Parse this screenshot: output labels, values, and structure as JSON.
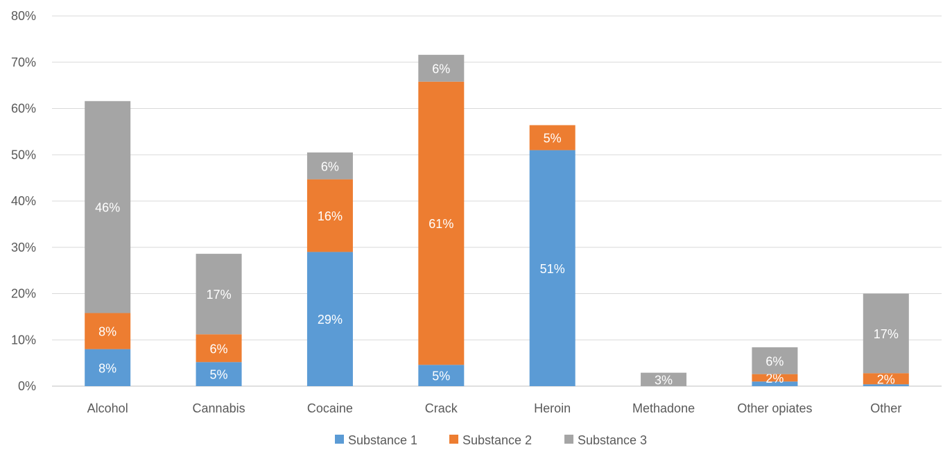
{
  "chart_data": {
    "type": "bar",
    "stacked": true,
    "categories": [
      "Alcohol",
      "Cannabis",
      "Cocaine",
      "Crack",
      "Heroin",
      "Methadone",
      "Other opiates",
      "Other"
    ],
    "series": [
      {
        "name": "Substance 1",
        "color": "#5B9BD5",
        "values": [
          0.08,
          0.052,
          0.29,
          0.046,
          0.51,
          0.0,
          0.01,
          0.004
        ],
        "labels": [
          "8%",
          "5%",
          "29%",
          "5%",
          "51%",
          "",
          "",
          ""
        ]
      },
      {
        "name": "Substance 2",
        "color": "#ED7D31",
        "values": [
          0.078,
          0.06,
          0.157,
          0.612,
          0.054,
          0.0,
          0.016,
          0.024
        ],
        "labels": [
          "8%",
          "6%",
          "16%",
          "61%",
          "5%",
          "",
          "2%",
          "2%"
        ]
      },
      {
        "name": "Substance 3",
        "color": "#A5A5A5",
        "values": [
          0.458,
          0.174,
          0.058,
          0.058,
          0.0,
          0.029,
          0.058,
          0.172
        ],
        "labels": [
          "46%",
          "17%",
          "6%",
          "6%",
          "",
          "3%",
          "6%",
          "17%"
        ]
      }
    ],
    "y_ticks": [
      "0%",
      "10%",
      "20%",
      "30%",
      "40%",
      "50%",
      "60%",
      "70%",
      "80%"
    ],
    "ylim": [
      0,
      0.8
    ],
    "grid": true,
    "legend_position": "bottom"
  }
}
